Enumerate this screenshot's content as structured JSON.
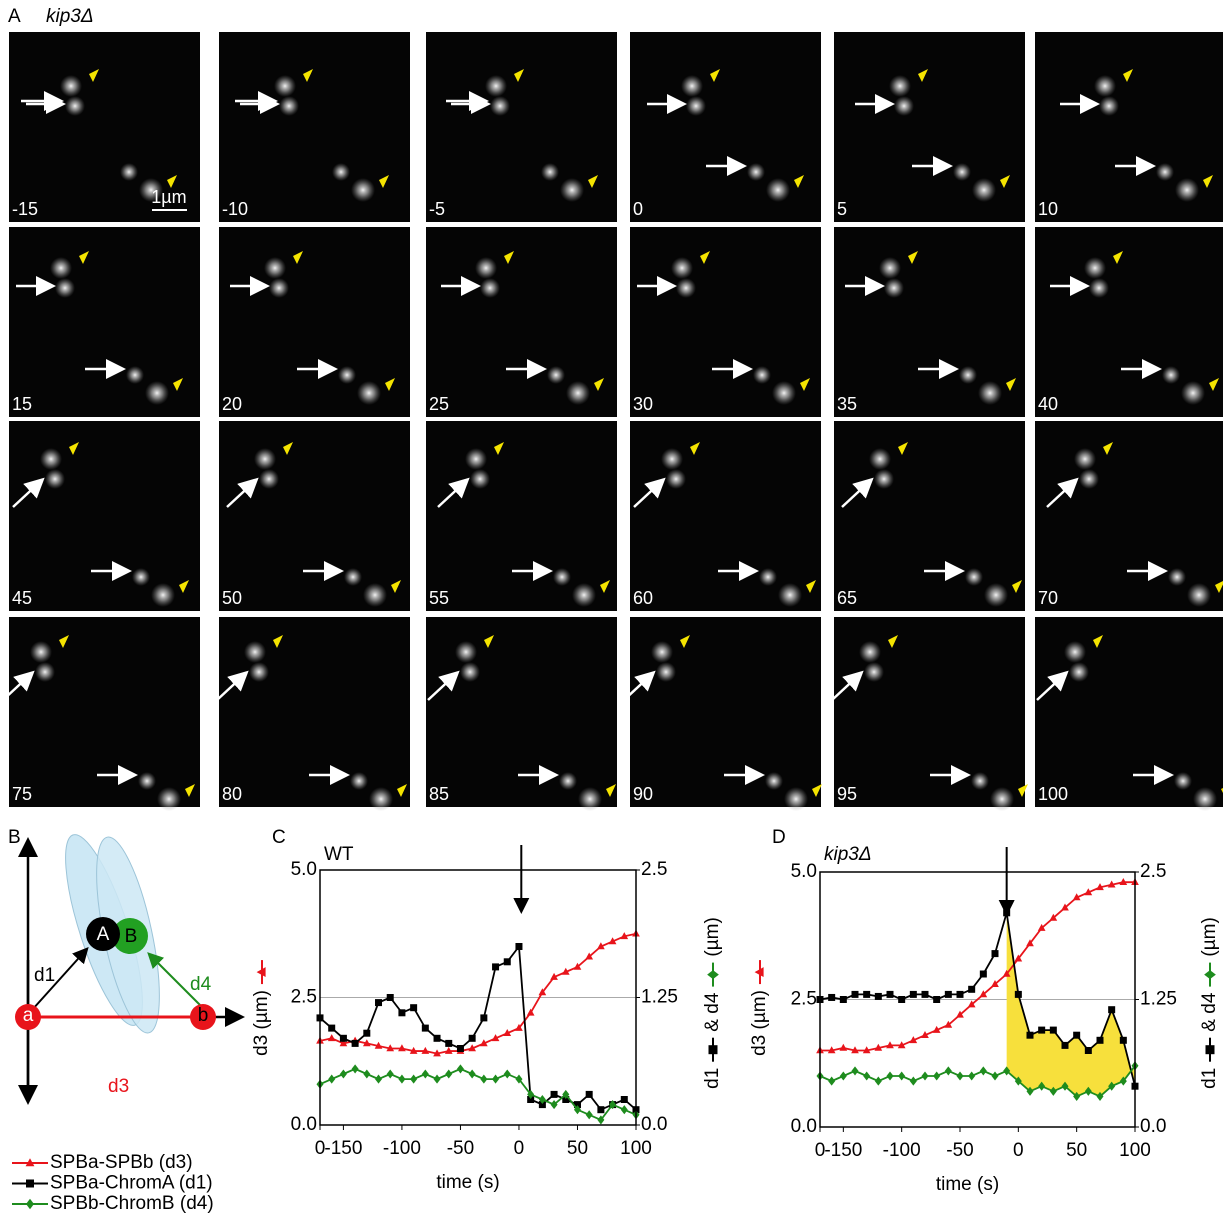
{
  "panel_a": {
    "label": "A",
    "title": "kip3Δ",
    "scale_bar": "1µm",
    "frames": [
      "-15",
      "-10",
      "-5",
      "0",
      "5",
      "10",
      "15",
      "20",
      "25",
      "30",
      "35",
      "40",
      "45",
      "50",
      "55",
      "60",
      "65",
      "70",
      "75",
      "80",
      "85",
      "90",
      "95",
      "100"
    ]
  },
  "panel_b": {
    "label": "B",
    "nodes": [
      "A",
      "B",
      "a",
      "b"
    ],
    "distances": [
      "d1",
      "d4",
      "d3"
    ]
  },
  "chart_data": [
    {
      "type": "line",
      "panel_label": "C",
      "title": "WT",
      "x_label": "time (s)",
      "y_label": "d3 (µm)",
      "y2_label": [
        "d1",
        "& d4",
        "(µm)"
      ],
      "xlim": [
        -170,
        100
      ],
      "xticks": [
        {
          "value": -170,
          "label": "0"
        },
        -150,
        -100,
        -50,
        0,
        50,
        100
      ],
      "ylim": [
        0,
        5
      ],
      "yticks": [
        {
          "value": 0,
          "label": "0.0"
        },
        2.5,
        {
          "value": 5,
          "label": "5.0"
        }
      ],
      "y2lim": [
        0,
        2.5
      ],
      "y2ticks": [
        {
          "value": 0,
          "label": "0.0"
        },
        1.25,
        2.5
      ],
      "grid": true,
      "arrow_x": 2,
      "x": [
        -170,
        -160,
        -150,
        -140,
        -130,
        -120,
        -110,
        -100,
        -90,
        -80,
        -70,
        -60,
        -50,
        -40,
        -30,
        -20,
        -10,
        0,
        10,
        20,
        30,
        40,
        50,
        60,
        70,
        80,
        90,
        100
      ],
      "series": [
        {
          "name": "SPBa-SPBb (d3)",
          "color": "#e8141b",
          "marker": "triangle",
          "values": [
            1.65,
            1.7,
            1.6,
            1.65,
            1.6,
            1.55,
            1.5,
            1.5,
            1.45,
            1.45,
            1.4,
            1.45,
            1.45,
            1.5,
            1.6,
            1.7,
            1.8,
            1.9,
            2.2,
            2.6,
            2.9,
            3.0,
            3.1,
            3.3,
            3.5,
            3.6,
            3.7,
            3.75
          ]
        },
        {
          "name": "SPBa-ChromA (d1)",
          "color": "#000000",
          "marker": "square",
          "axis": "y2",
          "values": [
            1.05,
            0.95,
            0.85,
            0.8,
            0.9,
            1.2,
            1.25,
            1.1,
            1.15,
            0.95,
            0.85,
            0.8,
            0.75,
            0.85,
            1.05,
            1.55,
            1.6,
            1.75,
            0.25,
            0.2,
            0.3,
            0.25,
            0.2,
            0.3,
            0.15,
            0.2,
            0.25,
            0.15
          ]
        },
        {
          "name": "SPBb-ChromB (d4)",
          "color": "#1e8c1e",
          "marker": "diamond",
          "axis": "y2",
          "values": [
            0.4,
            0.45,
            0.5,
            0.55,
            0.5,
            0.45,
            0.5,
            0.45,
            0.45,
            0.5,
            0.45,
            0.5,
            0.55,
            0.5,
            0.45,
            0.45,
            0.5,
            0.45,
            0.3,
            0.25,
            0.2,
            0.3,
            0.15,
            0.1,
            0.05,
            0.2,
            0.15,
            0.1
          ]
        }
      ]
    },
    {
      "type": "line",
      "panel_label": "D",
      "title": "kip3Δ",
      "x_label": "time (s)",
      "y_label": "d3 (µm)",
      "y2_label": [
        "d1",
        "& d4",
        "(µm)"
      ],
      "xlim": [
        -170,
        100
      ],
      "xticks": [
        {
          "value": -170,
          "label": "0"
        },
        -150,
        -100,
        -50,
        0,
        50,
        100
      ],
      "ylim": [
        0,
        5
      ],
      "yticks": [
        {
          "value": 0,
          "label": "0.0"
        },
        2.5,
        {
          "value": 5,
          "label": "5.0"
        }
      ],
      "y2lim": [
        0,
        2.5
      ],
      "y2ticks": [
        {
          "value": 0,
          "label": "0.0"
        },
        1.25,
        2.5
      ],
      "grid": true,
      "arrow_x": -10,
      "highlight_xlim": [
        -10,
        100
      ],
      "highlight_color": "#f7e03c",
      "x": [
        -170,
        -160,
        -150,
        -140,
        -130,
        -120,
        -110,
        -100,
        -90,
        -80,
        -70,
        -60,
        -50,
        -40,
        -30,
        -20,
        -10,
        0,
        10,
        20,
        30,
        40,
        50,
        60,
        70,
        80,
        90,
        100
      ],
      "series": [
        {
          "color": "#e8141b",
          "marker": "triangle",
          "values": [
            1.5,
            1.5,
            1.55,
            1.5,
            1.5,
            1.55,
            1.6,
            1.6,
            1.7,
            1.8,
            1.9,
            2.0,
            2.2,
            2.4,
            2.6,
            2.8,
            3.0,
            3.3,
            3.6,
            3.9,
            4.1,
            4.3,
            4.5,
            4.6,
            4.7,
            4.75,
            4.8,
            4.8
          ]
        },
        {
          "color": "#000000",
          "marker": "square",
          "axis": "y2",
          "values": [
            1.25,
            1.27,
            1.25,
            1.3,
            1.3,
            1.28,
            1.3,
            1.25,
            1.3,
            1.3,
            1.25,
            1.3,
            1.3,
            1.35,
            1.5,
            1.7,
            2.1,
            1.3,
            0.9,
            0.95,
            0.95,
            0.8,
            0.9,
            0.75,
            0.85,
            1.15,
            0.85,
            0.4
          ]
        },
        {
          "color": "#1e8c1e",
          "marker": "diamond",
          "axis": "y2",
          "values": [
            0.5,
            0.45,
            0.5,
            0.55,
            0.5,
            0.45,
            0.5,
            0.5,
            0.45,
            0.5,
            0.5,
            0.55,
            0.5,
            0.5,
            0.55,
            0.5,
            0.55,
            0.45,
            0.35,
            0.4,
            0.35,
            0.4,
            0.3,
            0.35,
            0.3,
            0.4,
            0.45,
            0.6
          ]
        }
      ]
    }
  ]
}
